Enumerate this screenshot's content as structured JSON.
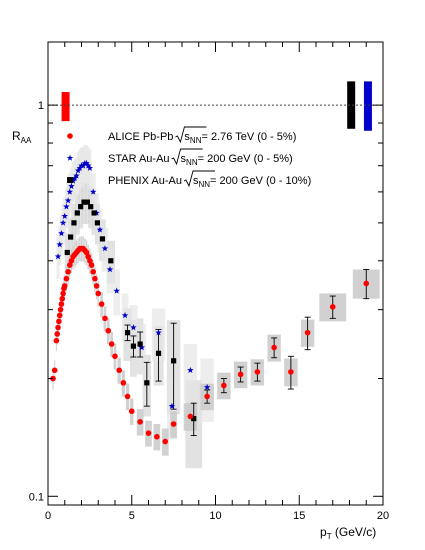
{
  "chart_data": {
    "type": "scatter",
    "ylabel_main": "R",
    "ylabel_sub": "AA",
    "xlabel_main": "p",
    "xlabel_sub": "T",
    "xlabel_unit": " (GeV/c)",
    "xlim": [
      0,
      20
    ],
    "ylim": [
      0.095,
      1.45
    ],
    "yscale": "log",
    "x_ticks": [
      0,
      5,
      10,
      15,
      20
    ],
    "y_ticks": [
      0.1,
      1
    ],
    "y_tick_labels": [
      "0.1",
      "1"
    ],
    "reference_line": 1,
    "legend": [
      {
        "marker": "circle",
        "color": "#ff0000",
        "prefix": "ALICE Pb-Pb",
        "sqrt_sub": "NN",
        "suffix": " = 2.76 TeV (0 - 5%)"
      },
      {
        "marker": "star",
        "color": "#0000cc",
        "prefix": "STAR Au-Au",
        "sqrt_sub": "NN",
        "suffix": " = 200 GeV (0 - 5%)"
      },
      {
        "marker": "square",
        "color": "#000000",
        "prefix": "PHENIX Au-Au",
        "sqrt_sub": "NN",
        "suffix": " = 200 GeV (0 - 10%)"
      }
    ],
    "normalization_boxes": [
      {
        "series": "ALICE",
        "x": 1.05,
        "ylow": 0.91,
        "yhigh": 1.08,
        "color": "#ff0000"
      },
      {
        "series": "PHENIX",
        "x": 18.1,
        "ylow": 0.87,
        "yhigh": 1.15,
        "color": "#000000"
      },
      {
        "series": "STAR",
        "x": 19.1,
        "ylow": 0.86,
        "yhigh": 1.15,
        "color": "#0000cc"
      }
    ],
    "series": [
      {
        "name": "ALICE Pb-Pb",
        "marker": "circle",
        "color": "#ff0000",
        "points": [
          [
            0.3,
            0.2,
            0,
            0.03,
            0.013
          ],
          [
            0.4,
            0.21,
            0,
            0.03,
            0.013
          ],
          [
            0.5,
            0.25,
            0,
            0.03,
            0.015
          ],
          [
            0.55,
            0.26,
            0,
            0.03,
            0.016
          ],
          [
            0.6,
            0.27,
            0,
            0.03,
            0.017
          ],
          [
            0.65,
            0.28,
            0,
            0.03,
            0.018
          ],
          [
            0.7,
            0.29,
            0,
            0.03,
            0.019
          ],
          [
            0.75,
            0.3,
            0,
            0.03,
            0.02
          ],
          [
            0.8,
            0.31,
            0,
            0.03,
            0.02
          ],
          [
            0.85,
            0.32,
            0,
            0.03,
            0.021
          ],
          [
            0.9,
            0.33,
            0,
            0.03,
            0.022
          ],
          [
            0.95,
            0.34,
            0,
            0.03,
            0.023
          ],
          [
            1.0,
            0.345,
            0,
            0.03,
            0.024
          ],
          [
            1.1,
            0.36,
            0,
            0.04,
            0.025
          ],
          [
            1.2,
            0.375,
            0,
            0.04,
            0.026
          ],
          [
            1.3,
            0.39,
            0,
            0.04,
            0.027
          ],
          [
            1.4,
            0.4,
            0,
            0.04,
            0.028
          ],
          [
            1.5,
            0.41,
            0,
            0.04,
            0.029
          ],
          [
            1.6,
            0.415,
            0,
            0.04,
            0.03
          ],
          [
            1.7,
            0.42,
            0,
            0.04,
            0.03
          ],
          [
            1.8,
            0.425,
            0,
            0.04,
            0.031
          ],
          [
            1.9,
            0.43,
            0,
            0.04,
            0.031
          ],
          [
            2.0,
            0.43,
            0,
            0.04,
            0.032
          ],
          [
            2.1,
            0.43,
            0,
            0.04,
            0.032
          ],
          [
            2.2,
            0.425,
            0,
            0.04,
            0.031
          ],
          [
            2.3,
            0.42,
            0,
            0.04,
            0.031
          ],
          [
            2.4,
            0.41,
            0,
            0.04,
            0.03
          ],
          [
            2.5,
            0.4,
            0,
            0.04,
            0.03
          ],
          [
            2.6,
            0.39,
            0,
            0.04,
            0.029
          ],
          [
            2.7,
            0.375,
            0,
            0.04,
            0.028
          ],
          [
            2.8,
            0.36,
            0,
            0.04,
            0.027
          ],
          [
            2.9,
            0.345,
            0,
            0.04,
            0.026
          ],
          [
            3.0,
            0.33,
            0,
            0.04,
            0.025
          ],
          [
            3.2,
            0.31,
            0,
            0.08,
            0.023
          ],
          [
            3.4,
            0.285,
            0,
            0.08,
            0.021
          ],
          [
            3.6,
            0.265,
            0,
            0.08,
            0.02
          ],
          [
            3.8,
            0.245,
            0,
            0.08,
            0.018
          ],
          [
            4.0,
            0.228,
            0,
            0.08,
            0.017
          ],
          [
            4.25,
            0.21,
            0,
            0.1,
            0.016
          ],
          [
            4.5,
            0.195,
            0,
            0.1,
            0.015
          ],
          [
            4.75,
            0.18,
            0,
            0.1,
            0.014
          ],
          [
            5.0,
            0.165,
            0,
            0.1,
            0.013
          ],
          [
            5.5,
            0.155,
            0,
            0.2,
            0.012
          ],
          [
            6.0,
            0.145,
            0,
            0.2,
            0.011
          ],
          [
            6.5,
            0.142,
            0,
            0.2,
            0.011
          ],
          [
            7.0,
            0.138,
            0,
            0.2,
            0.011
          ],
          [
            7.5,
            0.153,
            0,
            0.2,
            0.012
          ],
          [
            8.5,
            0.16,
            0,
            0.4,
            0.013
          ],
          [
            9.5,
            0.18,
            0.007,
            0.4,
            0.014
          ],
          [
            10.5,
            0.192,
            0.008,
            0.4,
            0.015
          ],
          [
            11.5,
            0.205,
            0.009,
            0.4,
            0.016
          ],
          [
            12.5,
            0.208,
            0.011,
            0.4,
            0.016
          ],
          [
            13.5,
            0.24,
            0.014,
            0.4,
            0.019
          ],
          [
            14.5,
            0.208,
            0.02,
            0.4,
            0.017
          ],
          [
            15.5,
            0.262,
            0.025,
            0.4,
            0.021
          ],
          [
            17.0,
            0.305,
            0.02,
            0.8,
            0.025
          ],
          [
            19.0,
            0.35,
            0.03,
            0.8,
            0.03
          ]
        ]
      },
      {
        "name": "STAR Au-Au",
        "marker": "star",
        "color": "#0000cc",
        "points": [
          [
            0.6,
            0.41,
            0,
            0.1,
            0.05
          ],
          [
            0.7,
            0.44,
            0,
            0.1,
            0.05
          ],
          [
            0.8,
            0.47,
            0,
            0.1,
            0.055
          ],
          [
            0.9,
            0.5,
            0,
            0.1,
            0.06
          ],
          [
            1.0,
            0.52,
            0,
            0.1,
            0.06
          ],
          [
            1.1,
            0.55,
            0,
            0.1,
            0.065
          ],
          [
            1.2,
            0.57,
            0,
            0.1,
            0.065
          ],
          [
            1.3,
            0.6,
            0,
            0.1,
            0.07
          ],
          [
            1.4,
            0.62,
            0,
            0.1,
            0.07
          ],
          [
            1.5,
            0.64,
            0,
            0.1,
            0.075
          ],
          [
            1.6,
            0.65,
            0,
            0.1,
            0.075
          ],
          [
            1.7,
            0.66,
            0,
            0.1,
            0.076
          ],
          [
            1.8,
            0.68,
            0,
            0.1,
            0.078
          ],
          [
            1.9,
            0.69,
            0,
            0.1,
            0.08
          ],
          [
            2.0,
            0.7,
            0,
            0.1,
            0.08
          ],
          [
            2.1,
            0.7,
            0,
            0.1,
            0.08
          ],
          [
            2.2,
            0.71,
            0,
            0.1,
            0.08
          ],
          [
            2.3,
            0.71,
            0,
            0.1,
            0.08
          ],
          [
            2.4,
            0.7,
            0,
            0.1,
            0.08
          ],
          [
            2.5,
            0.69,
            0,
            0.1,
            0.08
          ],
          [
            2.7,
            0.6,
            0,
            0.15,
            0.07
          ],
          [
            2.9,
            0.53,
            0,
            0.15,
            0.065
          ],
          [
            3.1,
            0.48,
            0,
            0.15,
            0.06
          ],
          [
            3.4,
            0.43,
            0,
            0.2,
            0.055
          ],
          [
            3.7,
            0.38,
            0,
            0.2,
            0.05
          ],
          [
            4.1,
            0.335,
            0,
            0.2,
            0.045
          ],
          [
            4.6,
            0.29,
            0,
            0.2,
            0.04
          ],
          [
            5.1,
            0.27,
            0,
            0.25,
            0.038
          ],
          [
            5.6,
            0.24,
            0,
            0.25,
            0.035
          ],
          [
            6.6,
            0.262,
            0,
            0.4,
            0.04
          ],
          [
            7.4,
            0.17,
            0,
            0.3,
            0.03
          ],
          [
            8.5,
            0.21,
            0,
            0.4,
            0.035
          ],
          [
            9.5,
            0.19,
            0,
            0.4,
            0.035
          ]
        ]
      },
      {
        "name": "PHENIX Au-Au",
        "marker": "square",
        "color": "#000000",
        "points": [
          [
            1.15,
            0.42,
            0,
            0.15,
            0.05
          ],
          [
            1.35,
            0.46,
            0,
            0.15,
            0.055
          ],
          [
            1.55,
            0.5,
            0,
            0.15,
            0.06
          ],
          [
            1.75,
            0.53,
            0,
            0.15,
            0.063
          ],
          [
            1.95,
            0.55,
            0,
            0.15,
            0.066
          ],
          [
            2.15,
            0.565,
            0,
            0.15,
            0.068
          ],
          [
            2.35,
            0.565,
            0,
            0.15,
            0.068
          ],
          [
            2.55,
            0.55,
            0,
            0.15,
            0.066
          ],
          [
            2.75,
            0.53,
            0,
            0.15,
            0.064
          ],
          [
            2.95,
            0.5,
            0,
            0.15,
            0.06
          ],
          [
            3.25,
            0.455,
            0,
            0.2,
            0.055
          ],
          [
            3.75,
            0.4,
            0,
            0.25,
            0.05
          ],
          [
            4.75,
            0.262,
            0.012,
            0.25,
            0.04
          ],
          [
            5.1,
            0.242,
            0.015,
            0.2,
            0.04
          ],
          [
            5.5,
            0.245,
            0.018,
            0.2,
            0.04
          ],
          [
            5.9,
            0.195,
            0.025,
            0.25,
            0.035
          ],
          [
            6.6,
            0.232,
            0.035,
            0.3,
            0.04
          ],
          [
            7.5,
            0.222,
            0.055,
            0.4,
            0.06
          ],
          [
            8.7,
            0.158,
            0.015,
            0.5,
            0.04
          ]
        ]
      }
    ]
  }
}
